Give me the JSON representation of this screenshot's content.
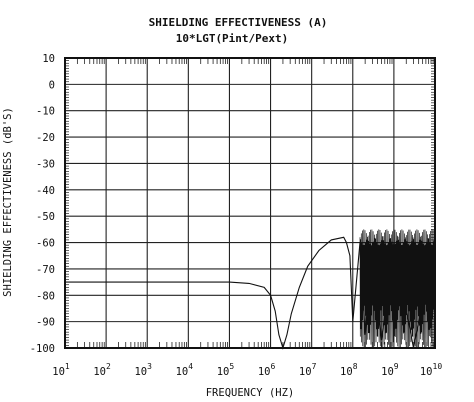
{
  "chart_data": {
    "type": "line",
    "title": "SHIELDING EFFECTIVENESS (A)",
    "subtitle": "10*LGT(Pint/Pext)",
    "xlabel": "FREQUENCY (HZ)",
    "ylabel": "SHIELDING EFFECTIVENESS (dB'S)",
    "x_scale": "log",
    "xlim": [
      10,
      10000000000
    ],
    "ylim": [
      -100,
      10
    ],
    "grid": true,
    "x_tick_labels": [
      {
        "base": "10",
        "exp": "1"
      },
      {
        "base": "10",
        "exp": "2"
      },
      {
        "base": "10",
        "exp": "3"
      },
      {
        "base": "10",
        "exp": "4"
      },
      {
        "base": "10",
        "exp": "5"
      },
      {
        "base": "10",
        "exp": "6"
      },
      {
        "base": "10",
        "exp": "7"
      },
      {
        "base": "10",
        "exp": "8"
      },
      {
        "base": "10",
        "exp": "9"
      },
      {
        "base": "10",
        "exp": "10"
      }
    ],
    "y_ticks": [
      10,
      0,
      -10,
      -20,
      -30,
      -40,
      -50,
      -60,
      -70,
      -80,
      -90,
      -100
    ],
    "y_tick_labels": [
      "10",
      "0",
      "-10",
      "-20",
      "-30",
      "-40",
      "-50",
      "-60",
      "-70",
      "-80",
      "-90",
      "-100"
    ],
    "series": [
      {
        "x": [
          10,
          100,
          1000,
          10000,
          100000,
          300000,
          700000,
          1000000,
          1300000,
          1600000,
          2000000,
          2500000,
          3200000,
          5000000,
          8000000,
          15000000,
          30000000,
          60000000,
          70000000,
          85000000,
          100000000,
          150000000,
          200000000,
          300000000,
          500000000,
          1000000000,
          3000000000,
          10000000000
        ],
        "y": [
          -75,
          -75,
          -75,
          -75,
          -75,
          -75.5,
          -77,
          -80,
          -86,
          -95,
          -100,
          -95,
          -87,
          -77,
          -69,
          -63,
          -59,
          -58,
          -60,
          -65,
          -90,
          -60,
          -95,
          -60,
          -97,
          -60,
          -100,
          -58
        ]
      }
    ]
  }
}
